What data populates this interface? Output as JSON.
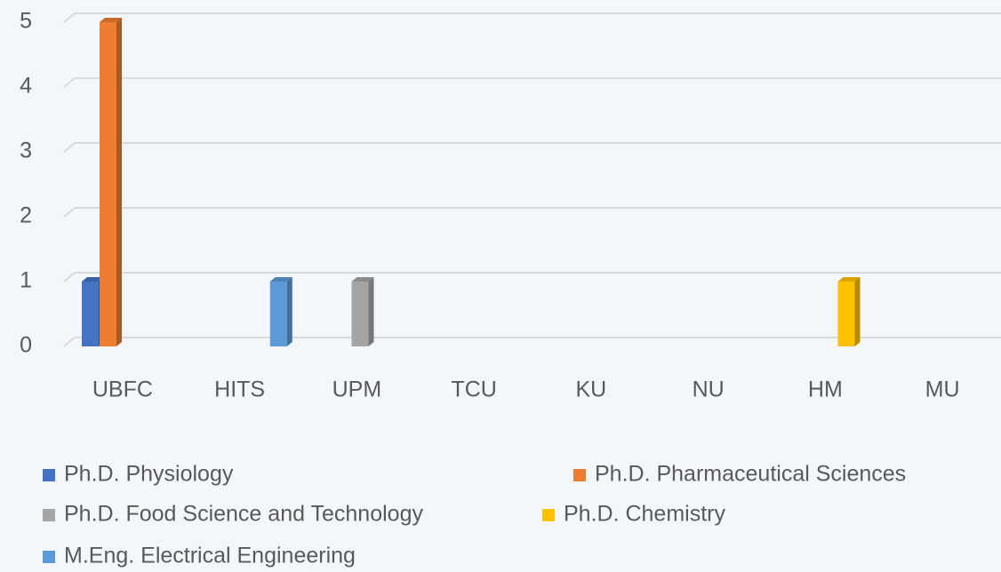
{
  "chart_data": {
    "type": "bar",
    "categories": [
      "UBFC",
      "HITS",
      "UPM",
      "TCU",
      "KU",
      "NU",
      "HM",
      "MU"
    ],
    "series": [
      {
        "name": "Ph.D. Physiology",
        "color": "#4472c4",
        "values": [
          1,
          0,
          0,
          0,
          0,
          0,
          0,
          0
        ]
      },
      {
        "name": "Ph.D. Pharmaceutical Sciences",
        "color": "#ed7d31",
        "values": [
          5,
          0,
          0,
          0,
          0,
          0,
          0,
          0
        ]
      },
      {
        "name": "Ph.D. Food Science and Technology",
        "color": "#a5a5a5",
        "values": [
          0,
          0,
          1,
          0,
          0,
          0,
          0,
          0
        ]
      },
      {
        "name": "Ph.D. Chemistry",
        "color": "#ffc000",
        "values": [
          0,
          0,
          0,
          0,
          0,
          0,
          1,
          0
        ]
      },
      {
        "name": "M.Eng. Electrical Engineering",
        "color": "#5b9bd5",
        "values": [
          0,
          1,
          0,
          0,
          0,
          0,
          0,
          0
        ]
      }
    ],
    "ylim": [
      0,
      5
    ],
    "yticks": [
      0,
      1,
      2,
      3,
      4,
      5
    ],
    "grid": true,
    "legend": "bottom"
  }
}
